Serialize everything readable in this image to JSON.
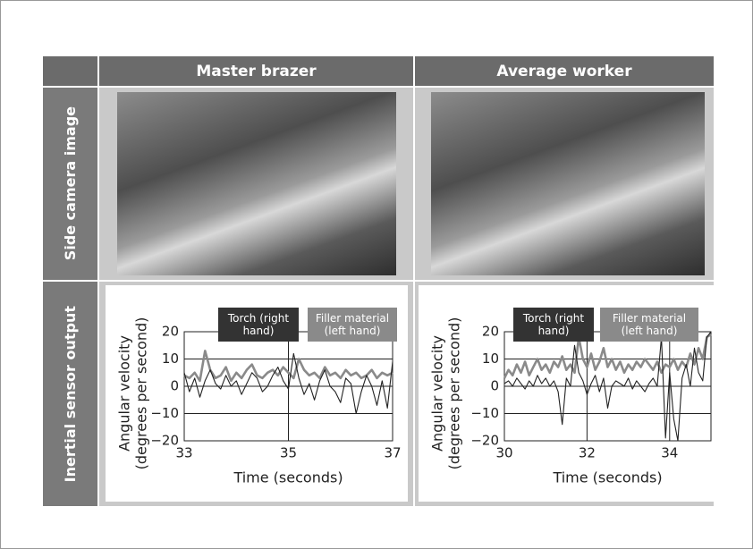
{
  "columns": [
    "Master brazer",
    "Average worker"
  ],
  "rows": [
    "Side camera image",
    "Inertial sensor output"
  ],
  "chart_data": [
    {
      "type": "line",
      "xlabel": "Time (seconds)",
      "ylabel": [
        "Angular velocity",
        "(degrees per second)"
      ],
      "xlim": [
        33,
        37
      ],
      "xticks": [
        33,
        35,
        37
      ],
      "ylim": [
        -20,
        20
      ],
      "yticks": [
        {
          "value": -20,
          "label": "−20"
        },
        {
          "value": -10,
          "label": "−10"
        },
        0,
        10,
        20
      ],
      "grid": true,
      "x": [
        33.0,
        33.1,
        33.2,
        33.3,
        33.4,
        33.5,
        33.6,
        33.7,
        33.8,
        33.9,
        34.0,
        34.1,
        34.2,
        34.3,
        34.4,
        34.5,
        34.6,
        34.7,
        34.8,
        34.9,
        35.0,
        35.1,
        35.2,
        35.3,
        35.4,
        35.5,
        35.6,
        35.7,
        35.8,
        35.9,
        36.0,
        36.1,
        36.2,
        36.3,
        36.4,
        36.5,
        36.6,
        36.7,
        36.8,
        36.9,
        37.0
      ],
      "series": [
        {
          "name": "Torch (right hand)",
          "color": "#222222",
          "values": [
            5,
            -2,
            3,
            -4,
            2,
            6,
            1,
            -1,
            4,
            0,
            2,
            -3,
            1,
            5,
            3,
            -2,
            0,
            4,
            7,
            2,
            -1,
            12,
            3,
            -3,
            1,
            -5,
            2,
            6,
            0,
            -2,
            -6,
            3,
            1,
            -10,
            -2,
            4,
            0,
            -7,
            2,
            -8,
            9
          ]
        },
        {
          "name": "Filler material (left hand)",
          "color": "#8a8a8a",
          "values": [
            4,
            3,
            5,
            2,
            13,
            6,
            3,
            4,
            7,
            2,
            5,
            3,
            6,
            8,
            4,
            3,
            5,
            6,
            4,
            7,
            5,
            3,
            10,
            6,
            4,
            5,
            3,
            7,
            4,
            5,
            3,
            6,
            4,
            5,
            3,
            4,
            6,
            3,
            5,
            4,
            5
          ]
        }
      ]
    },
    {
      "type": "line",
      "xlabel": "Time (seconds)",
      "ylabel": [
        "Angular velocity",
        "(degrees per second)"
      ],
      "xlim": [
        30,
        35
      ],
      "xticks": [
        30,
        32,
        34
      ],
      "ylim": [
        -20,
        20
      ],
      "yticks": [
        {
          "value": -20,
          "label": "−20"
        },
        {
          "value": -10,
          "label": "−10"
        },
        0,
        10,
        20
      ],
      "grid": true,
      "x": [
        30.0,
        30.1,
        30.2,
        30.3,
        30.4,
        30.5,
        30.6,
        30.7,
        30.8,
        30.9,
        31.0,
        31.1,
        31.2,
        31.3,
        31.4,
        31.5,
        31.6,
        31.7,
        31.8,
        31.9,
        32.0,
        32.1,
        32.2,
        32.3,
        32.4,
        32.5,
        32.6,
        32.7,
        32.8,
        32.9,
        33.0,
        33.1,
        33.2,
        33.3,
        33.4,
        33.5,
        33.6,
        33.7,
        33.8,
        33.9,
        34.0,
        34.1,
        34.2,
        34.3,
        34.4,
        34.5,
        34.6,
        34.7,
        34.8,
        34.9,
        35.0
      ],
      "series": [
        {
          "name": "Torch (right hand)",
          "color": "#222222",
          "values": [
            1,
            2,
            0,
            3,
            1,
            -1,
            2,
            0,
            4,
            1,
            3,
            0,
            2,
            -2,
            -14,
            3,
            0,
            15,
            5,
            2,
            -3,
            1,
            4,
            -2,
            3,
            -8,
            0,
            2,
            1,
            0,
            3,
            -1,
            2,
            0,
            -2,
            1,
            3,
            0,
            18,
            -19,
            5,
            -12,
            -20,
            3,
            8,
            0,
            14,
            5,
            2,
            18,
            20
          ]
        },
        {
          "name": "Filler material (left hand)",
          "color": "#8a8a8a",
          "values": [
            3,
            6,
            4,
            8,
            5,
            9,
            4,
            7,
            10,
            6,
            8,
            5,
            9,
            7,
            11,
            6,
            8,
            5,
            18,
            10,
            7,
            12,
            6,
            9,
            14,
            7,
            10,
            6,
            9,
            5,
            8,
            6,
            9,
            7,
            10,
            8,
            6,
            9,
            5,
            8,
            7,
            10,
            6,
            9,
            7,
            12,
            8,
            14,
            10,
            18,
            19
          ]
        }
      ]
    }
  ]
}
